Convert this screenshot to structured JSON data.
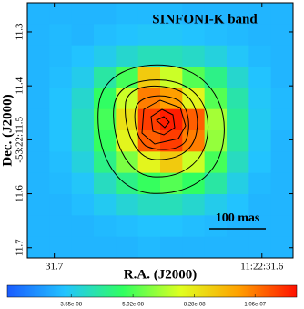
{
  "chart_data": {
    "type": "heatmap",
    "title": "SINFONI-K band",
    "xlabel": "R.A. (J2000)",
    "ylabel": "Dec. (J2000)",
    "xlim": [
      31.713,
      31.585
    ],
    "xticks": [
      31.7,
      {
        "value": 31.6,
        "label": "11:22:31.6"
      }
    ],
    "ylim": [
      11.246,
      11.719
    ],
    "yticks": [
      11.3,
      11.4,
      {
        "value": 11.5,
        "label": "-53:22:11.5"
      },
      11.6,
      11.7
    ],
    "annotation": "100 mas",
    "colormap": [
      "#1a5cff",
      "#22c4ff",
      "#30ff60",
      "#e0ff20",
      "#ffa000",
      "#ff1000"
    ],
    "clim": [
      1.1e-08,
      1.22e-07
    ],
    "cticks": [
      {
        "value": 3.55e-08,
        "label": "3.55e-08"
      },
      {
        "value": 5.92e-08,
        "label": "5.92e-08"
      },
      {
        "value": 8.28e-08,
        "label": "8.28e-08"
      },
      {
        "value": 1.06e-07,
        "label": "1.06e-07"
      }
    ],
    "z": [
      [
        3e-08,
        3e-08,
        3e-08,
        3e-08,
        3.1e-08,
        3.1e-08,
        3.1e-08,
        3e-08,
        3e-08,
        3e-08,
        3e-08,
        3e-08
      ],
      [
        3e-08,
        3.1e-08,
        3e-08,
        3.2e-08,
        3.3e-08,
        3.4e-08,
        3.4e-08,
        3.3e-08,
        3.2e-08,
        3.1e-08,
        3e-08,
        3e-08
      ],
      [
        3e-08,
        3.1e-08,
        3.3e-08,
        3.6e-08,
        4e-08,
        4.3e-08,
        4.3e-08,
        4.1e-08,
        3.8e-08,
        3.4e-08,
        3.1e-08,
        3e-08
      ],
      [
        3e-08,
        3.2e-08,
        3.6e-08,
        4.6e-08,
        5.8e-08,
        9e-08,
        7.5e-08,
        6e-08,
        5e-08,
        4e-08,
        3.3e-08,
        3e-08
      ],
      [
        3e-08,
        3.3e-08,
        4e-08,
        5.5e-08,
        7.5e-08,
        1.05e-07,
        1e-07,
        8e-08,
        6e-08,
        4.5e-08,
        3.4e-08,
        3.1e-08
      ],
      [
        3e-08,
        3.3e-08,
        4.2e-08,
        5.8e-08,
        8.5e-08,
        1.15e-07,
        1.2e-07,
        1.1e-07,
        7e-08,
        4.8e-08,
        3.5e-08,
        3.1e-08
      ],
      [
        3e-08,
        3.3e-08,
        4.1e-08,
        5.6e-08,
        8e-08,
        1.1e-07,
        1.15e-07,
        1.05e-07,
        6.8e-08,
        4.6e-08,
        3.4e-08,
        3e-08
      ],
      [
        3e-08,
        3.2e-08,
        3.8e-08,
        5e-08,
        6.5e-08,
        8e-08,
        9e-08,
        7.5e-08,
        5.8e-08,
        4.2e-08,
        3.3e-08,
        3e-08
      ],
      [
        3e-08,
        3.1e-08,
        3.4e-08,
        4.2e-08,
        5e-08,
        5.6e-08,
        6e-08,
        5.5e-08,
        4.6e-08,
        3.7e-08,
        3.1e-08,
        3e-08
      ],
      [
        3e-08,
        3e-08,
        3.2e-08,
        3.5e-08,
        3.9e-08,
        4.2e-08,
        4.3e-08,
        4e-08,
        3.6e-08,
        3.3e-08,
        3e-08,
        3e-08
      ],
      [
        3e-08,
        3e-08,
        3e-08,
        3.1e-08,
        3.2e-08,
        3.3e-08,
        3.3e-08,
        3.2e-08,
        3.1e-08,
        3e-08,
        3e-08,
        3e-08
      ],
      [
        3e-08,
        3e-08,
        3e-08,
        3e-08,
        3e-08,
        3.1e-08,
        3e-08,
        3e-08,
        3e-08,
        3e-08,
        3e-08,
        3e-08
      ]
    ]
  }
}
